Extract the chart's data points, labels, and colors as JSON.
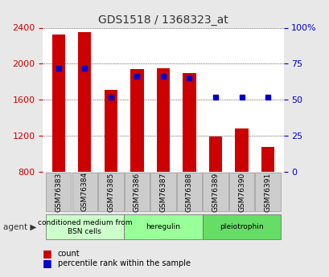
{
  "title": "GDS1518 / 1368323_at",
  "categories": [
    "GSM76383",
    "GSM76384",
    "GSM76385",
    "GSM76386",
    "GSM76387",
    "GSM76388",
    "GSM76389",
    "GSM76390",
    "GSM76391"
  ],
  "counts": [
    2320,
    2355,
    1710,
    1940,
    1950,
    1900,
    1195,
    1285,
    1080
  ],
  "percentile_ranks": [
    72,
    72,
    52,
    66,
    66,
    65,
    52,
    52,
    52
  ],
  "ymin": 800,
  "ymax": 2400,
  "yticks": [
    800,
    1200,
    1600,
    2000,
    2400
  ],
  "right_yticks": [
    0,
    25,
    50,
    75,
    100
  ],
  "bar_color": "#cc0000",
  "dot_color": "#0000cc",
  "agent_groups": [
    {
      "label": "conditioned medium from\nBSN cells",
      "start": 0,
      "end": 3,
      "color": "#ccffcc"
    },
    {
      "label": "heregulin",
      "start": 3,
      "end": 6,
      "color": "#99ff99"
    },
    {
      "label": "pleiotrophin",
      "start": 6,
      "end": 9,
      "color": "#66dd66"
    }
  ],
  "background_color": "#e8e8e8",
  "plot_bg_color": "#ffffff",
  "grid_color": "#000000",
  "title_color": "#333333",
  "left_axis_color": "#cc0000",
  "right_axis_color": "#0000cc"
}
